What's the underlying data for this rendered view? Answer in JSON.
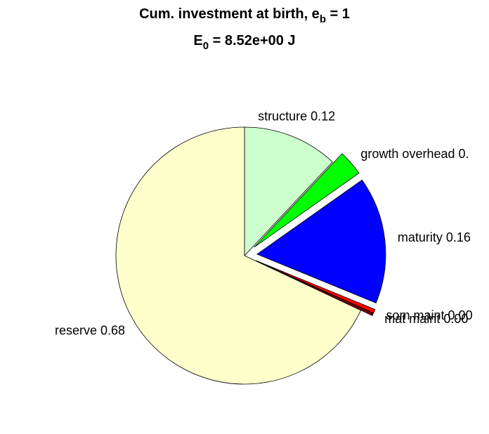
{
  "chart_data": {
    "type": "pie",
    "title": [
      "Cum. investment at birth, e",
      "b",
      " = 1"
    ],
    "subtitle": [
      "E",
      "0",
      " = 8.52e+00 J"
    ],
    "values": [
      0.12,
      0.032,
      0.16,
      0.005,
      0.003,
      0.68
    ],
    "value_labels": [
      "structure 0.12",
      "growth overhead 0.",
      "maturity 0.16",
      "som maint 0.00",
      "mat maint 0.00",
      "reserve 0.68"
    ],
    "colors": [
      "#ccffcc",
      "#00ff00",
      "#0000ff",
      "#ff0000",
      "#800000",
      "#ffffcc"
    ],
    "explode": [
      false,
      true,
      true,
      true,
      true,
      false
    ]
  }
}
